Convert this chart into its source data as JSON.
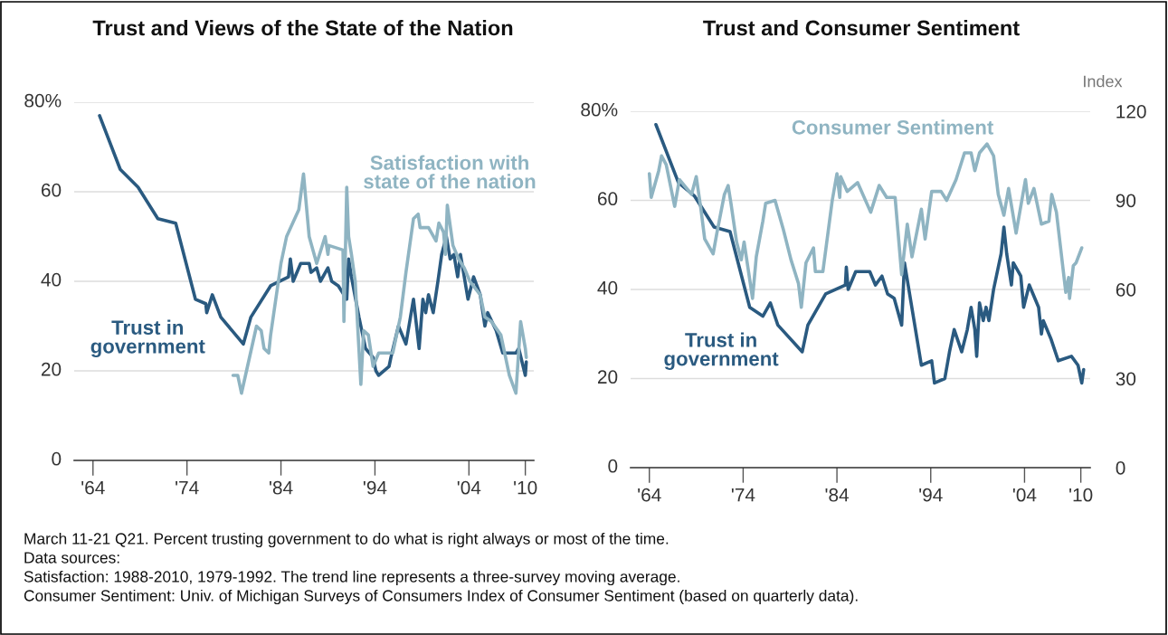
{
  "chart_data": [
    {
      "type": "line",
      "title": "Trust and Views of the State of the Nation",
      "xlim": [
        1962,
        2010.9
      ],
      "ylim": [
        0,
        80
      ],
      "xticks": [
        {
          "value": 1964,
          "label": "'64"
        },
        {
          "value": 1974,
          "label": "'74"
        },
        {
          "value": 1984,
          "label": "'84"
        },
        {
          "value": 1994,
          "label": "'94"
        },
        {
          "value": 2004,
          "label": "'04"
        },
        {
          "value": 2010,
          "label": "'10"
        }
      ],
      "yticks": [
        0,
        20,
        40,
        60,
        {
          "value": 80,
          "label": "80%"
        }
      ],
      "grid": "y",
      "line_style": "solid",
      "series": [
        {
          "name": "Trust in\ngovernment",
          "color": "#2a5a80",
          "x": [
            1964.7,
            1966.9,
            1968.8,
            1970.9,
            1972.8,
            1974.9,
            1976.0,
            1976.1,
            1976.7,
            1977.6,
            1980.0,
            1980.8,
            1982.9,
            1984.8,
            1985.0,
            1985.3,
            1986.1,
            1987.0,
            1987.2,
            1987.8,
            1988.2,
            1989.0,
            1989.4,
            1990.1,
            1991.0,
            1991.2,
            1991.5,
            1992.3,
            1993.0,
            1993.8,
            1994.1,
            1994.4,
            1995.5,
            1995.7,
            1996.5,
            1997.3,
            1998.1,
            1998.7,
            1999.1,
            1999.4,
            1999.7,
            2000.2,
            2000.7,
            2001.1,
            2001.6,
            2002.0,
            2002.4,
            2002.8,
            2003.1,
            2003.5,
            2003.9,
            2004.5,
            2005.2,
            2005.7,
            2006.0,
            2006.9,
            2007.6,
            2009.0,
            2009.3,
            2010.0,
            2010.1
          ],
          "values": [
            77,
            65,
            61,
            54,
            53,
            36,
            35,
            33,
            37,
            32,
            26,
            32,
            39,
            41,
            45,
            40,
            44,
            44,
            42,
            43,
            40,
            43,
            40,
            39,
            36,
            45,
            41,
            32,
            25,
            23,
            20,
            19,
            21,
            23,
            30,
            26,
            36,
            25,
            36,
            33,
            37,
            33,
            40,
            46,
            50,
            45,
            46,
            41,
            46,
            41,
            36,
            41,
            37,
            30,
            33,
            29,
            24,
            24,
            25,
            19,
            22
          ]
        },
        {
          "name": "Satisfaction with\nstate of the nation",
          "color": "#8fb4c2",
          "x": [
            1978.9,
            1979.4,
            1979.8,
            1981.4,
            1981.9,
            1982.2,
            1982.7,
            1982.9,
            1984.0,
            1984.6,
            1985.9,
            1986.4,
            1987.0,
            1987.8,
            1988.7,
            1989.0,
            1989.1,
            1990.6,
            1990.7,
            1991.0,
            1991.2,
            1991.5,
            1991.9,
            1992.5,
            1992.8,
            1993.3,
            1993.8,
            1994.4,
            1995.9,
            1996.7,
            1997.3,
            1998.1,
            1998.6,
            1998.8,
            1999.7,
            2000.5,
            2000.8,
            2001.3,
            2001.5,
            2001.7,
            2002.3,
            2002.9,
            2003.5,
            2004.1,
            2005.2,
            2005.7,
            2006.4,
            2007.4,
            2008.3,
            2009.0,
            2009.5,
            2010.0,
            2010.1
          ],
          "values": [
            19,
            19,
            15,
            30,
            29,
            25,
            24,
            28,
            44,
            50,
            56,
            64,
            50,
            44,
            50,
            46,
            48,
            47,
            31,
            61,
            50,
            46,
            40,
            17,
            29,
            28,
            21,
            24,
            24,
            32,
            42,
            54,
            55,
            52,
            52,
            49,
            53,
            51,
            46,
            57,
            48,
            45,
            43,
            40,
            37,
            32,
            31,
            28,
            19,
            15,
            31,
            25,
            23
          ]
        }
      ],
      "annotations": [
        "March 11-21 Q21. Percent trusting government to do what is right always or most of the time.",
        "Data sources:",
        "Satisfaction: 1988-2010, 1979-1992. The trend line represents a three-survey moving average.",
        "Consumer Sentiment: Univ. of Michigan Surveys of Consumers Index of Consumer Sentiment (based on quarterly data)."
      ]
    },
    {
      "type": "line",
      "title": "Trust and Consumer Sentiment",
      "xlim": [
        1962,
        2011
      ],
      "ylim": [
        0,
        80
      ],
      "y2lim": [
        0,
        120
      ],
      "y2label": "Index",
      "xticks": [
        {
          "value": 1964,
          "label": "'64"
        },
        {
          "value": 1974,
          "label": "'74"
        },
        {
          "value": 1984,
          "label": "'84"
        },
        {
          "value": 1994,
          "label": "'94"
        },
        {
          "value": 2004,
          "label": "'04"
        },
        {
          "value": 2010,
          "label": "'10"
        }
      ],
      "yticks": [
        0,
        20,
        40,
        60,
        {
          "value": 80,
          "label": "80%"
        }
      ],
      "y2ticks": [
        0,
        30,
        60,
        90,
        120
      ],
      "grid": "y",
      "line_style": "solid",
      "series": [
        {
          "name": "Consumer Sentiment",
          "color": "#8fb4c2",
          "axis": "y2",
          "x": [
            1964.0,
            1964.2,
            1965.0,
            1965.3,
            1965.8,
            1966.7,
            1967.2,
            1968.5,
            1969.0,
            1969.5,
            1969.9,
            1970.8,
            1971.2,
            1972.0,
            1972.4,
            1972.7,
            1973.3,
            1973.8,
            1974.1,
            1975.0,
            1975.4,
            1976.1,
            1976.4,
            1977.4,
            1978.3,
            1979.1,
            1979.9,
            1980.2,
            1980.7,
            1981.5,
            1981.7,
            1982.5,
            1983.5,
            1984.0,
            1984.3,
            1984.4,
            1985.1,
            1986.2,
            1987.6,
            1988.5,
            1989.3,
            1990.2,
            1990.9,
            1991.5,
            1992.0,
            1993.0,
            1993.4,
            1994.1,
            1995.1,
            1995.7,
            1996.7,
            1997.6,
            1998.3,
            1998.7,
            1999.2,
            2000.0,
            2000.7,
            2001.2,
            2001.8,
            2002.3,
            2003.1,
            2004.1,
            2004.4,
            2005.0,
            2005.8,
            2006.6,
            2006.9,
            2007.4,
            2008.4,
            2008.7,
            2008.8,
            2009.2,
            2009.5,
            2010.1
          ],
          "values": [
            99,
            91,
            100,
            105,
            102,
            88,
            97,
            92,
            98,
            87,
            77,
            72,
            79,
            92,
            95,
            89,
            76,
            70,
            76,
            57,
            71,
            83,
            89,
            90,
            80,
            70,
            62,
            54,
            69,
            74,
            66,
            66,
            90,
            99,
            91,
            98,
            93,
            96,
            86,
            95,
            91,
            91,
            65,
            82,
            71,
            87,
            77,
            93,
            93,
            90,
            97,
            106,
            106,
            100,
            106,
            109,
            105,
            92,
            85,
            94,
            79,
            97,
            89,
            94,
            82,
            83,
            92,
            86,
            59,
            64,
            57,
            68,
            69,
            74
          ]
        },
        {
          "name": "Trust in\ngovernment",
          "color": "#2a5a80",
          "x": [
            1964.7,
            1967.1,
            1968.8,
            1970.9,
            1972.6,
            1974.7,
            1976.1,
            1976.9,
            1977.7,
            1980.3,
            1980.9,
            1982.8,
            1984.9,
            1985.0,
            1985.2,
            1986.0,
            1987.5,
            1988.1,
            1988.8,
            1989.4,
            1990.1,
            1990.9,
            1991.2,
            1993.0,
            1994.1,
            1994.4,
            1995.5,
            1996.0,
            1996.5,
            1997.3,
            1997.9,
            1998.3,
            1998.7,
            1998.9,
            1999.2,
            1999.6,
            1999.9,
            2000.2,
            2000.7,
            2001.5,
            2001.8,
            2002.1,
            2002.6,
            2002.8,
            2003.6,
            2003.9,
            2004.5,
            2005.5,
            2005.8,
            2006.0,
            2006.8,
            2007.6,
            2009.0,
            2009.7,
            2010.1,
            2010.3
          ],
          "values": [
            77,
            64,
            61,
            54,
            53,
            36,
            34,
            37,
            32,
            26,
            32,
            39,
            41,
            45,
            40,
            44,
            44,
            41,
            43,
            39,
            38,
            32,
            46,
            23,
            24,
            19,
            20,
            26,
            31,
            26,
            31,
            36,
            31,
            25,
            37,
            33,
            36,
            33,
            40,
            48,
            54,
            48,
            41,
            46,
            43,
            36,
            41,
            36,
            30,
            33,
            29,
            24,
            25,
            23,
            19,
            22
          ]
        }
      ]
    }
  ]
}
